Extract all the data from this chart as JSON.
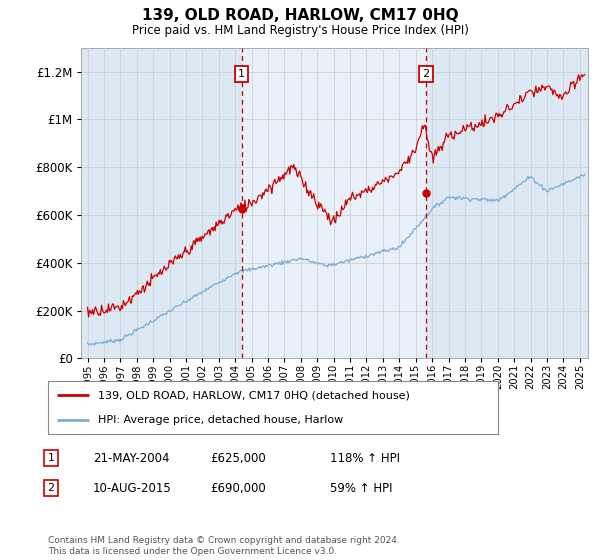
{
  "title": "139, OLD ROAD, HARLOW, CM17 0HQ",
  "subtitle": "Price paid vs. HM Land Registry's House Price Index (HPI)",
  "legend_line1": "139, OLD ROAD, HARLOW, CM17 0HQ (detached house)",
  "legend_line2": "HPI: Average price, detached house, Harlow",
  "footer": "Contains HM Land Registry data © Crown copyright and database right 2024.\nThis data is licensed under the Open Government Licence v3.0.",
  "sale1_label": "1",
  "sale1_price": 625000,
  "sale1_text": "21-MAY-2004",
  "sale1_pct": "118% ↑ HPI",
  "sale1_x": 2004.388,
  "sale2_label": "2",
  "sale2_price": 690000,
  "sale2_text": "10-AUG-2015",
  "sale2_pct": "59% ↑ HPI",
  "sale2_x": 2015.608,
  "plot_bg_color": "#dce9f5",
  "shade_color": "#e8f1fa",
  "red_line_color": "#cc0000",
  "blue_line_color": "#7aadd4",
  "grid_color": "#cccccc",
  "ylim": [
    0,
    1300000
  ],
  "yticks": [
    0,
    200000,
    400000,
    600000,
    800000,
    1000000,
    1200000
  ],
  "xlim_left": 1994.6,
  "xlim_right": 2025.5
}
